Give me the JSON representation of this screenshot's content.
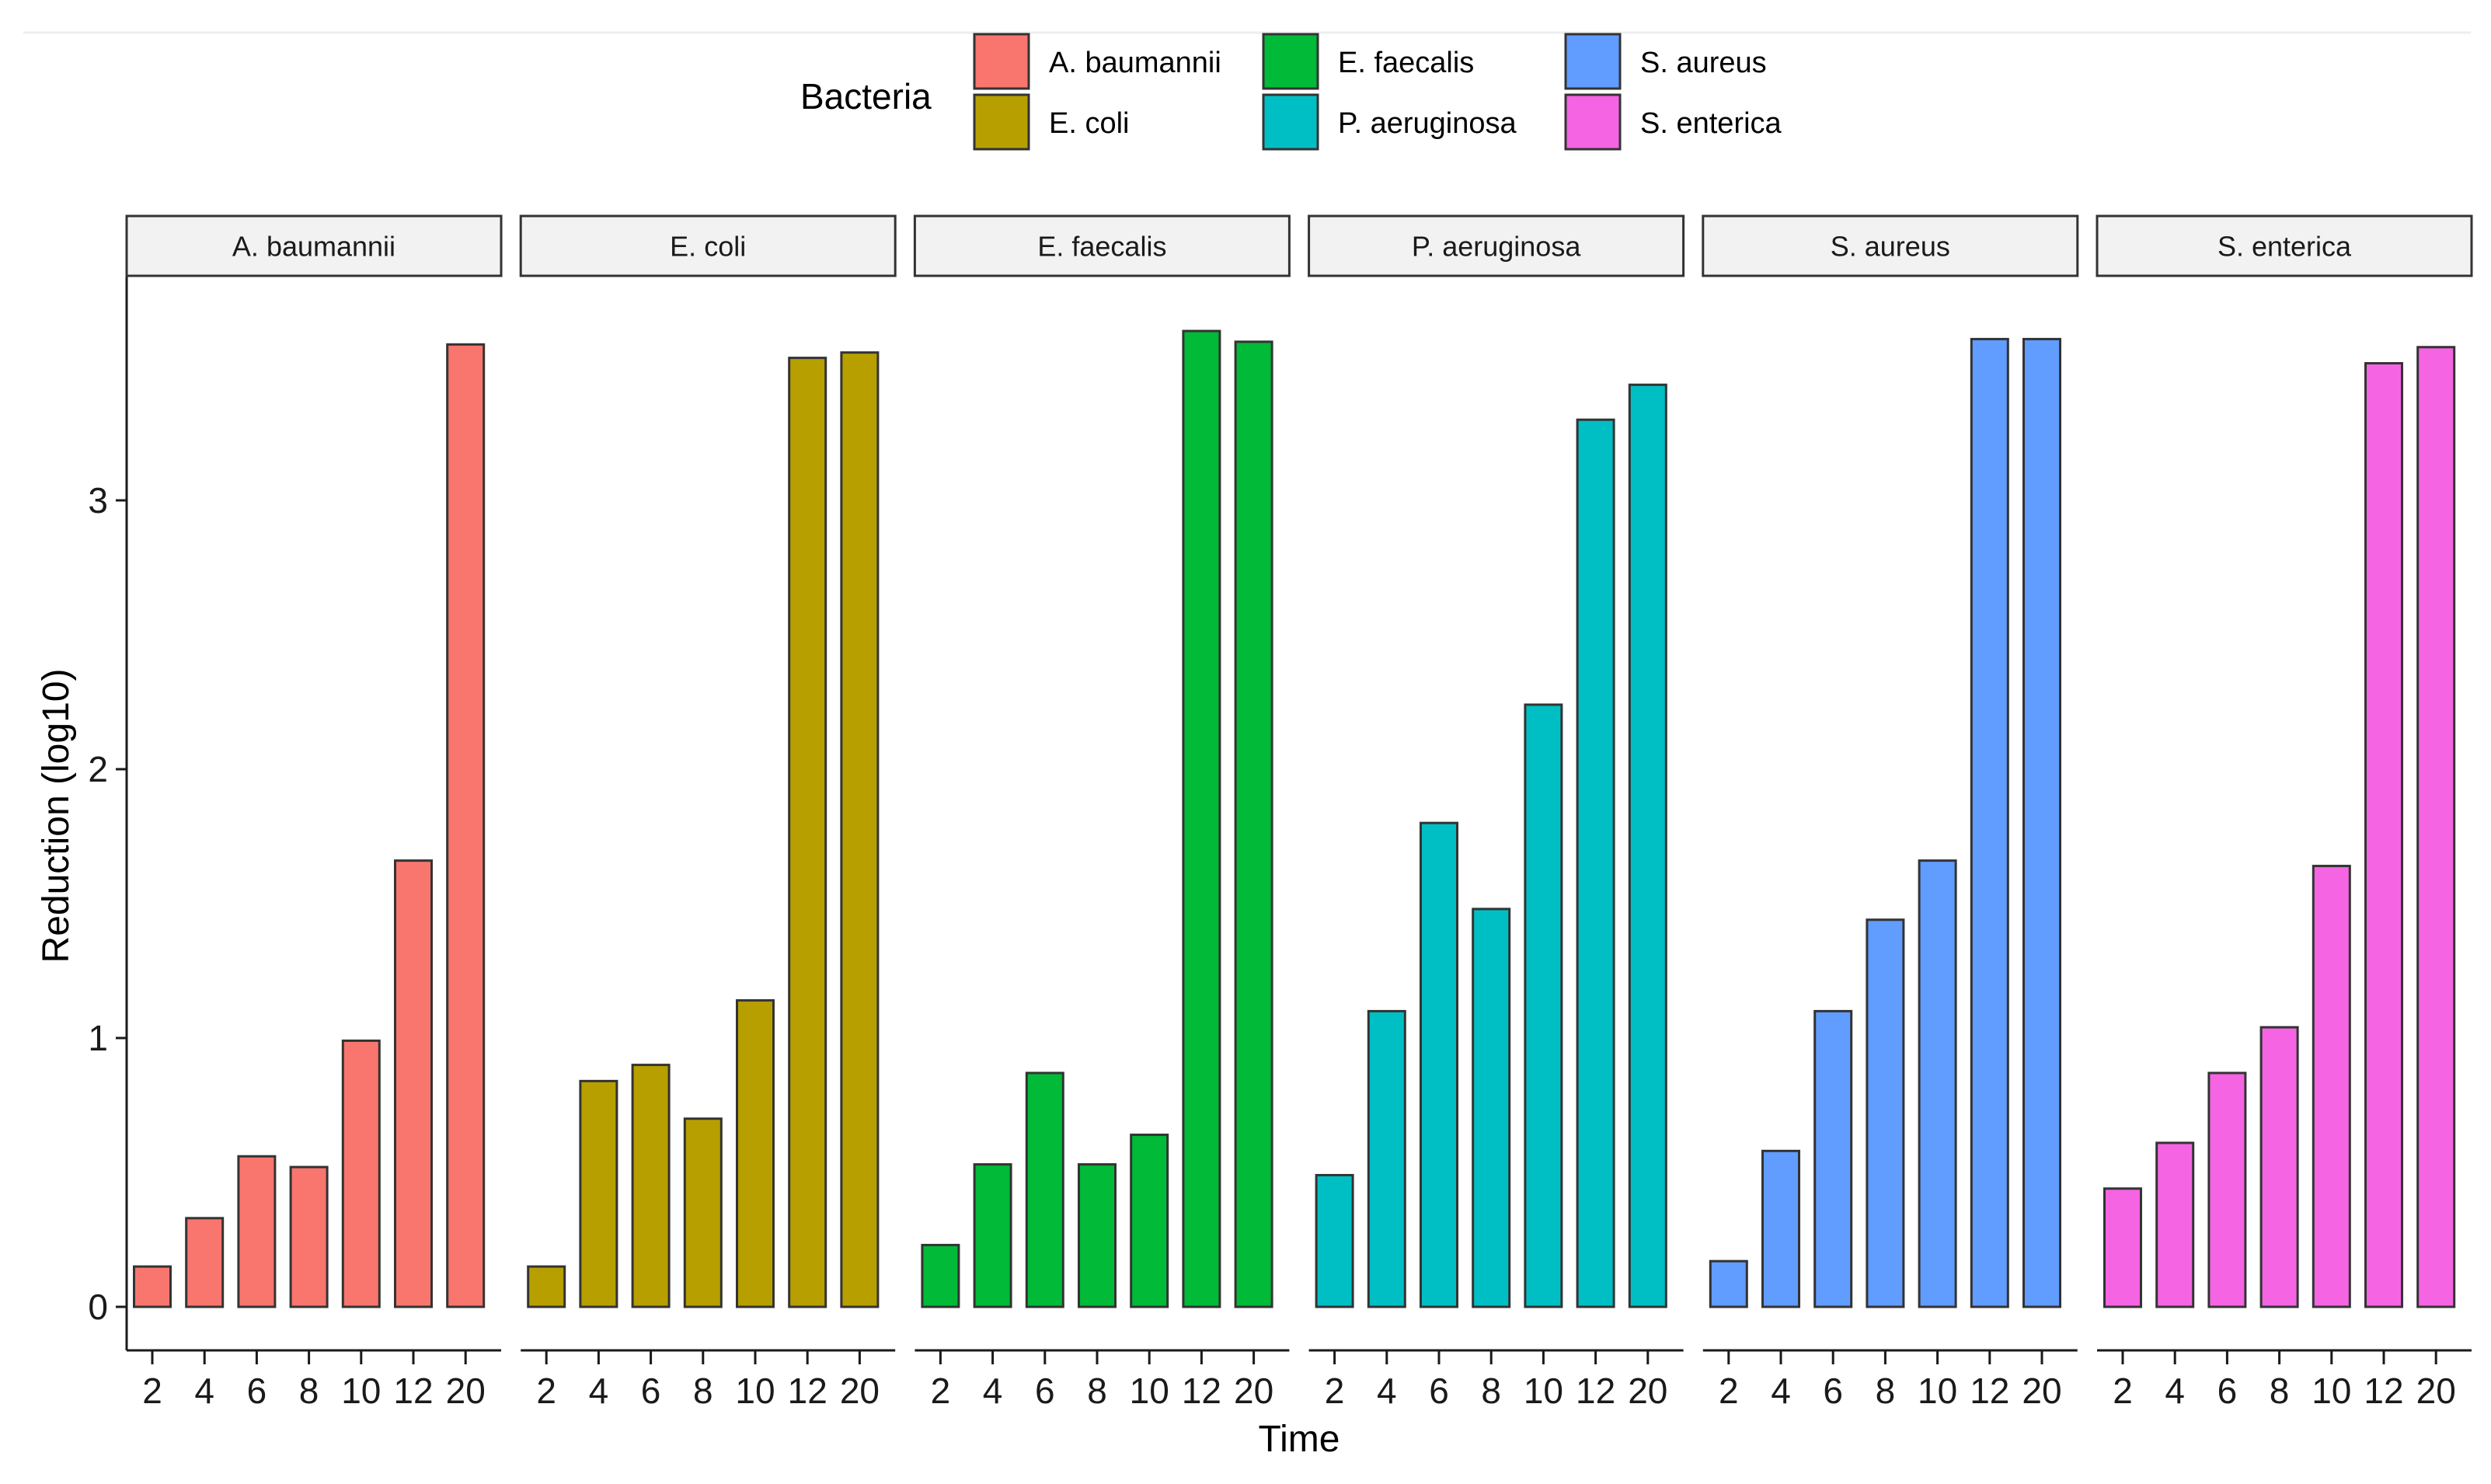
{
  "chart_data": {
    "type": "bar",
    "title": "",
    "xlabel": "Time",
    "ylabel": "Reduction (log10)",
    "ylim": [
      -0.18,
      3.8
    ],
    "yticks": [
      0,
      1,
      2,
      3
    ],
    "ytick_labels": [
      "0",
      "1",
      "2",
      "3"
    ],
    "categories": [
      2,
      4,
      6,
      8,
      10,
      12,
      20
    ],
    "legend": {
      "title": "Bacteria",
      "position": "top"
    },
    "facets": [
      {
        "name": "A. baumannii",
        "color": "#F8766D",
        "values": [
          0.15,
          0.33,
          0.56,
          0.52,
          0.99,
          1.66,
          3.58
        ]
      },
      {
        "name": "E. coli",
        "color": "#B79F00",
        "values": [
          0.15,
          0.84,
          0.9,
          0.7,
          1.14,
          3.53,
          3.55
        ]
      },
      {
        "name": "E. faecalis",
        "color": "#00BA38",
        "values": [
          0.23,
          0.53,
          0.87,
          0.53,
          0.64,
          3.63,
          3.59
        ]
      },
      {
        "name": "P. aeruginosa",
        "color": "#00BFC4",
        "values": [
          0.49,
          1.1,
          1.8,
          1.48,
          2.24,
          3.3,
          3.43
        ]
      },
      {
        "name": "S. aureus",
        "color": "#619CFF",
        "values": [
          0.17,
          0.58,
          1.1,
          1.44,
          1.66,
          3.6,
          3.6
        ]
      },
      {
        "name": "S. enterica",
        "color": "#F564E3",
        "values": [
          0.44,
          0.61,
          0.87,
          1.04,
          1.64,
          3.51,
          3.57
        ]
      }
    ]
  }
}
